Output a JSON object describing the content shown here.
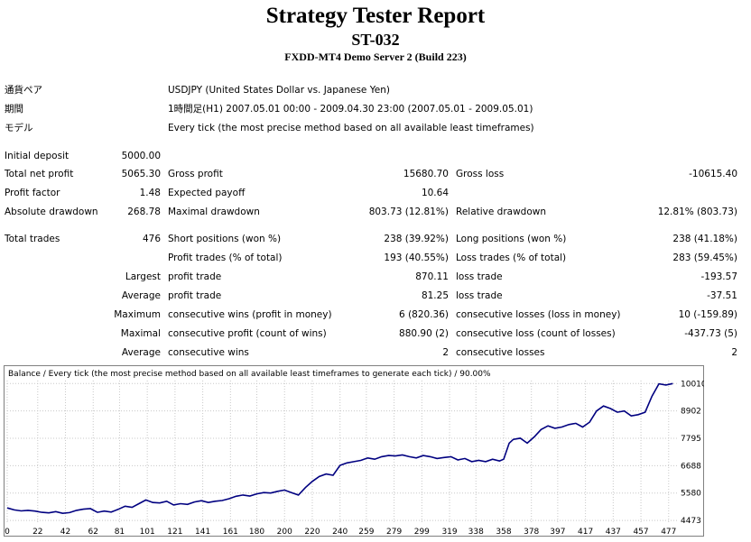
{
  "header": {
    "title": "Strategy Tester Report",
    "subtitle": "ST-032",
    "server": "FXDD-MT4 Demo Server 2 (Build 223)"
  },
  "info": {
    "pair_label": "通貨ペア",
    "pair_value": "USDJPY (United States Dollar vs. Japanese Yen)",
    "period_label": "期間",
    "period_value": "1時間足(H1) 2007.05.01 00:00 - 2009.04.30 23:00 (2007.05.01 - 2009.05.01)",
    "model_label": "モデル",
    "model_value": "Every tick (the most precise method based on all available least timeframes)"
  },
  "stats": {
    "initial_deposit_label": "Initial deposit",
    "initial_deposit": "5000.00",
    "total_net_profit_label": "Total net profit",
    "total_net_profit": "5065.30",
    "gross_profit_label": "Gross profit",
    "gross_profit": "15680.70",
    "gross_loss_label": "Gross loss",
    "gross_loss": "-10615.40",
    "profit_factor_label": "Profit factor",
    "profit_factor": "1.48",
    "expected_payoff_label": "Expected payoff",
    "expected_payoff": "10.64",
    "absolute_drawdown_label": "Absolute drawdown",
    "absolute_drawdown": "268.78",
    "maximal_drawdown_label": "Maximal drawdown",
    "maximal_drawdown": "803.73 (12.81%)",
    "relative_drawdown_label": "Relative drawdown",
    "relative_drawdown": "12.81% (803.73)",
    "total_trades_label": "Total trades",
    "total_trades": "476",
    "short_positions_label": "Short positions (won %)",
    "short_positions": "238 (39.92%)",
    "long_positions_label": "Long positions (won %)",
    "long_positions": "238 (41.18%)",
    "profit_trades_label": "Profit trades (% of total)",
    "profit_trades": "193 (40.55%)",
    "loss_trades_label": "Loss trades (% of total)",
    "loss_trades": "283 (59.45%)",
    "largest_label": "Largest",
    "largest_profit_label": "profit trade",
    "largest_profit": "870.11",
    "largest_loss_label": "loss trade",
    "largest_loss": "-193.57",
    "average_label": "Average",
    "average_profit_label": "profit trade",
    "average_profit": "81.25",
    "average_loss_label": "loss trade",
    "average_loss": "-37.51",
    "maximum_label": "Maximum",
    "max_consec_wins_label": "consecutive wins (profit in money)",
    "max_consec_wins": "6 (820.36)",
    "max_consec_losses_label": "consecutive losses (loss in money)",
    "max_consec_losses": "10 (-159.89)",
    "maximal_label": "Maximal",
    "maximal_consec_profit_label": "consecutive profit (count of wins)",
    "maximal_consec_profit": "880.90 (2)",
    "maximal_consec_loss_label": "consecutive loss (count of losses)",
    "maximal_consec_loss": "-437.73 (5)",
    "average2_label": "Average",
    "avg_consec_wins_label": "consecutive wins",
    "avg_consec_wins": "2",
    "avg_consec_losses_label": "consecutive losses",
    "avg_consec_losses": "2"
  },
  "chart_data": {
    "type": "line",
    "title": "Balance / Every tick (the most precise method based on all available least timeframes to generate each tick) / 90.00%",
    "xlabel": "",
    "ylabel": "",
    "x_ticks": [
      0,
      22,
      42,
      62,
      81,
      101,
      121,
      141,
      161,
      180,
      200,
      220,
      240,
      259,
      279,
      299,
      319,
      338,
      358,
      378,
      397,
      417,
      437,
      457,
      477
    ],
    "y_ticks": [
      4473,
      5580,
      6688,
      7795,
      8902,
      10010
    ],
    "xlim": [
      0,
      483
    ],
    "ylim": [
      4330,
      10130
    ],
    "grid": true,
    "line_color": "#000080",
    "series": [
      {
        "x": [
          0,
          5,
          10,
          15,
          20,
          25,
          30,
          35,
          40,
          45,
          50,
          55,
          60,
          65,
          70,
          75,
          80,
          85,
          90,
          95,
          100,
          105,
          110,
          115,
          120,
          125,
          130,
          135,
          140,
          145,
          150,
          155,
          160,
          165,
          170,
          175,
          180,
          185,
          190,
          195,
          200,
          205,
          210,
          215,
          220,
          225,
          230,
          235,
          240,
          245,
          250,
          255,
          260,
          265,
          270,
          275,
          280,
          285,
          290,
          295,
          300,
          305,
          310,
          315,
          320,
          325,
          330,
          335,
          340,
          345,
          350,
          355,
          358,
          362,
          365,
          370,
          375,
          380,
          385,
          390,
          395,
          400,
          405,
          410,
          415,
          420,
          425,
          430,
          435,
          440,
          445,
          450,
          455,
          460,
          465,
          470,
          475,
          480
        ],
        "values": [
          4980,
          4900,
          4860,
          4880,
          4850,
          4800,
          4780,
          4830,
          4760,
          4790,
          4880,
          4930,
          4950,
          4800,
          4850,
          4810,
          4920,
          5050,
          5000,
          5150,
          5300,
          5200,
          5180,
          5250,
          5100,
          5150,
          5120,
          5220,
          5270,
          5200,
          5250,
          5280,
          5350,
          5450,
          5500,
          5460,
          5550,
          5600,
          5580,
          5650,
          5700,
          5600,
          5500,
          5800,
          6050,
          6250,
          6350,
          6300,
          6700,
          6800,
          6850,
          6900,
          7000,
          6950,
          7050,
          7100,
          7080,
          7120,
          7050,
          7000,
          7100,
          7050,
          6980,
          7020,
          7050,
          6920,
          6980,
          6850,
          6900,
          6850,
          6950,
          6880,
          6950,
          7600,
          7750,
          7800,
          7600,
          7850,
          8150,
          8300,
          8200,
          8250,
          8350,
          8400,
          8250,
          8450,
          8900,
          9100,
          9000,
          8850,
          8900,
          8700,
          8750,
          8850,
          9500,
          10000,
          9950,
          10010
        ]
      }
    ]
  }
}
